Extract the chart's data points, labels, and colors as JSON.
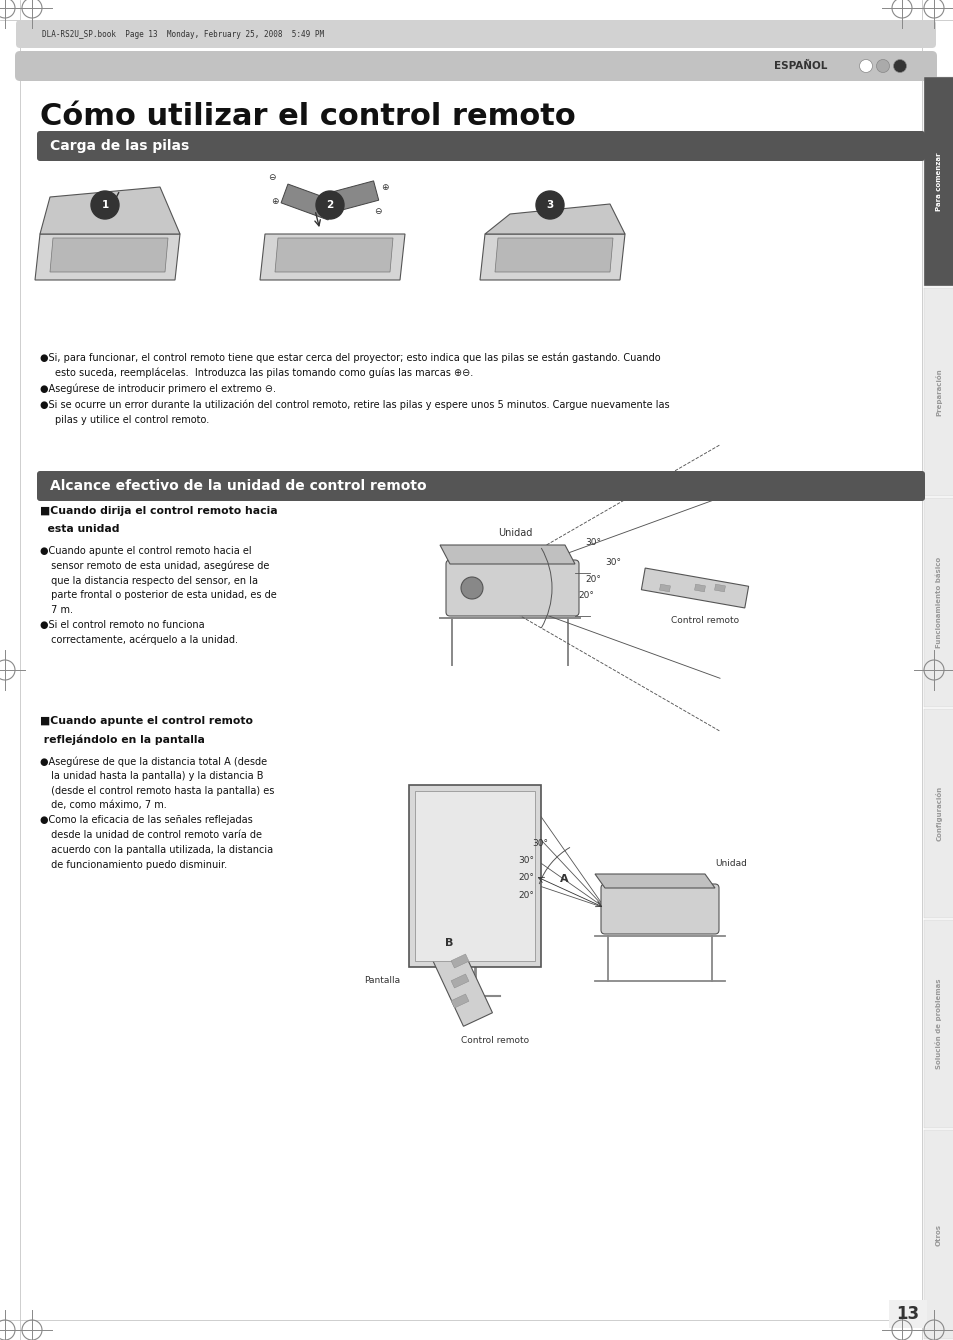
{
  "page_width": 9.54,
  "page_height": 13.4,
  "bg_color": "#ffffff",
  "title_text": "Cómo utilizar el control remoto",
  "section1_text": "Carga de las pilas",
  "section2_text": "Alcance efectivo de la unidad de control remoto",
  "header_label": "ESPAÑOL",
  "tab_labels": [
    "Para comenzar",
    "Preparación",
    "Funcionamiento básico",
    "Configuración",
    "Solución de problemas",
    "Otros"
  ],
  "page_number": "13",
  "file_info": "DLA-RS2U_SP.book  Page 13  Monday, February 25, 2008  5:49 PM",
  "label_unidad1": "Unidad",
  "label_control_remoto1": "Control remoto",
  "label_unidad2": "Unidad",
  "label_pantalla": "Pantalla",
  "label_control_remoto2": "Control remoto"
}
